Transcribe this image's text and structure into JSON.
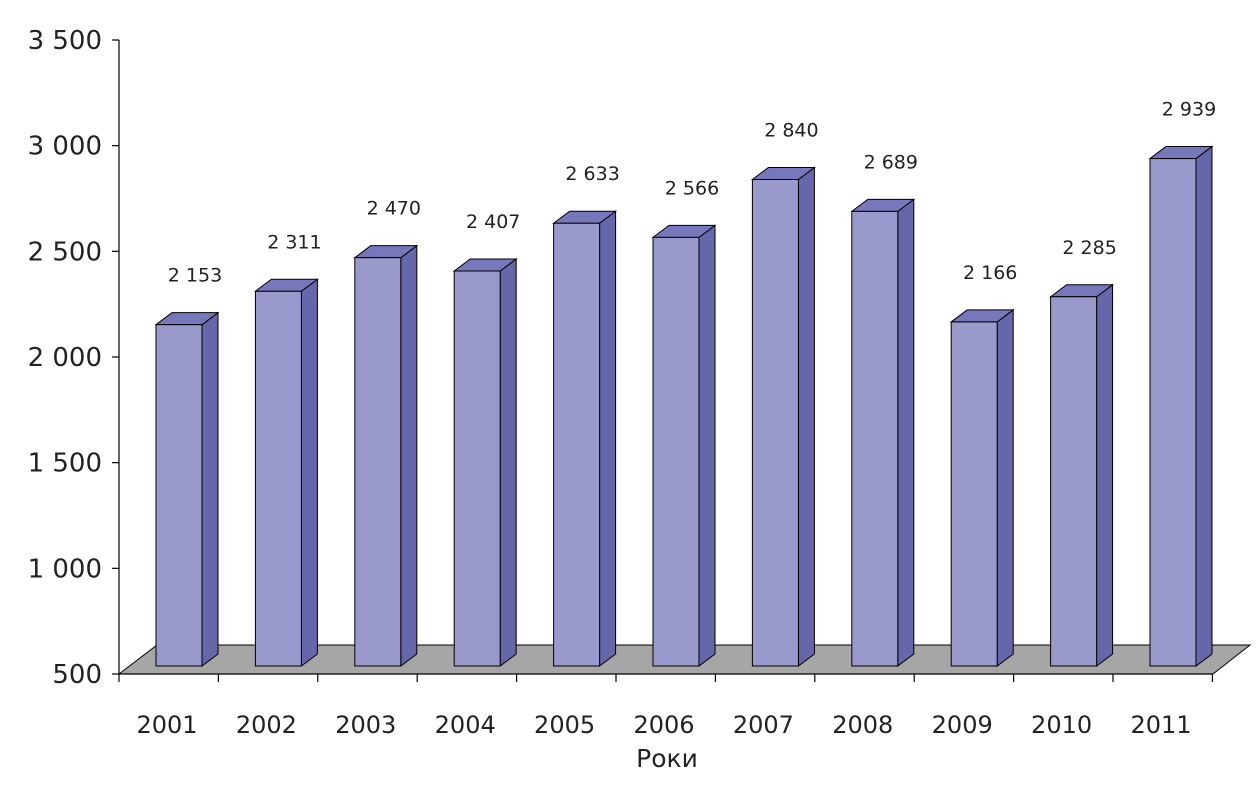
{
  "chart_data": {
    "type": "bar",
    "xlabel": "Роки",
    "ylabel": "",
    "ylim": [
      500,
      3500
    ],
    "yticks": [
      500,
      1000,
      1500,
      2000,
      2500,
      3000,
      3500
    ],
    "ytick_labels": [
      "500",
      "1 000",
      "1 500",
      "2 000",
      "2 500",
      "3 000",
      "3 500"
    ],
    "categories": [
      "2001",
      "2002",
      "2003",
      "2004",
      "2005",
      "2006",
      "2007",
      "2008",
      "2009",
      "2010",
      "2011"
    ],
    "values": [
      2153,
      2311,
      2470,
      2407,
      2633,
      2566,
      2840,
      2689,
      2166,
      2285,
      2939
    ],
    "value_labels": [
      "2 153",
      "2 311",
      "2 470",
      "2 407",
      "2 633",
      "2 566",
      "2 840",
      "2 689",
      "2 166",
      "2 285",
      "2 939"
    ],
    "grid": false,
    "legend": "none",
    "style": "3d-column",
    "colors": {
      "bar_front": "#9999cc",
      "bar_side": "#6666aa",
      "bar_top": "#7777bb",
      "floor": "#a6a6a6",
      "stroke": "#000000"
    }
  }
}
